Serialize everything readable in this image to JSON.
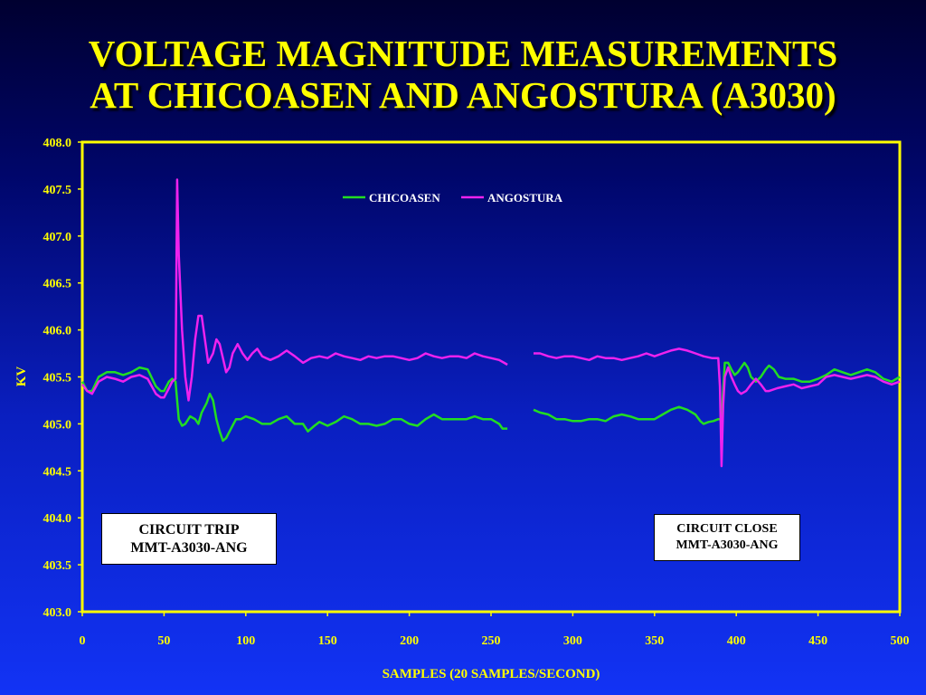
{
  "slide": {
    "title_line1": "VOLTAGE MAGNITUDE MEASUREMENTS",
    "title_line2": "AT CHICOASEN AND ANGOSTURA (A3030)"
  },
  "colors": {
    "title": "#ffff00",
    "plot_border": "#ffff00",
    "chicoasen": "#22dd22",
    "angostura": "#ee22ee"
  },
  "annotations": {
    "trip": {
      "line1": "CIRCUIT TRIP",
      "line2": "MMT-A3030-ANG"
    },
    "close": {
      "line1": "CIRCUIT CLOSE",
      "line2": "MMT-A3030-ANG"
    }
  },
  "chart_data": {
    "type": "line",
    "title": "VOLTAGE MAGNITUDE MEASUREMENTS AT CHICOASEN AND ANGOSTURA (A3030)",
    "xlabel": "SAMPLES (20 SAMPLES/SECOND)",
    "ylabel": "KV",
    "xlim": [
      0,
      500
    ],
    "ylim": [
      403.0,
      408.0
    ],
    "xticks": [
      0,
      50,
      100,
      150,
      200,
      250,
      300,
      350,
      400,
      450,
      500
    ],
    "yticks": [
      "408.0",
      "407.5",
      "407.0",
      "406.5",
      "406.0",
      "405.5",
      "405.0",
      "404.5",
      "404.0",
      "403.5",
      "403.0"
    ],
    "grid": false,
    "legend_position": "top-center",
    "series": [
      {
        "name": "CHICOASEN",
        "color": "#22dd22",
        "segments": [
          [
            [
              0,
              405.45
            ],
            [
              3,
              405.35
            ],
            [
              6,
              405.35
            ],
            [
              10,
              405.5
            ],
            [
              15,
              405.55
            ],
            [
              20,
              405.55
            ],
            [
              25,
              405.52
            ],
            [
              30,
              405.55
            ],
            [
              35,
              405.6
            ],
            [
              40,
              405.58
            ],
            [
              45,
              405.4
            ],
            [
              48,
              405.35
            ],
            [
              50,
              405.35
            ],
            [
              53,
              405.45
            ],
            [
              55,
              405.48
            ],
            [
              57,
              405.45
            ],
            [
              59,
              405.05
            ],
            [
              61,
              404.98
            ],
            [
              63,
              405.0
            ],
            [
              66,
              405.08
            ],
            [
              69,
              405.05
            ],
            [
              71,
              405.0
            ],
            [
              73,
              405.12
            ],
            [
              76,
              405.22
            ],
            [
              78,
              405.32
            ],
            [
              80,
              405.25
            ],
            [
              82,
              405.05
            ],
            [
              84,
              404.92
            ],
            [
              86,
              404.82
            ],
            [
              88,
              404.85
            ],
            [
              91,
              404.95
            ],
            [
              94,
              405.05
            ],
            [
              97,
              405.05
            ],
            [
              100,
              405.08
            ],
            [
              105,
              405.05
            ],
            [
              110,
              405.0
            ],
            [
              115,
              405.0
            ],
            [
              120,
              405.05
            ],
            [
              125,
              405.08
            ],
            [
              130,
              405.0
            ],
            [
              135,
              405.0
            ],
            [
              138,
              404.92
            ],
            [
              142,
              404.98
            ],
            [
              145,
              405.02
            ],
            [
              150,
              404.98
            ],
            [
              155,
              405.02
            ],
            [
              160,
              405.08
            ],
            [
              165,
              405.05
            ],
            [
              170,
              405.0
            ],
            [
              175,
              405.0
            ],
            [
              180,
              404.98
            ],
            [
              185,
              405.0
            ],
            [
              190,
              405.05
            ],
            [
              195,
              405.05
            ],
            [
              200,
              405.0
            ],
            [
              205,
              404.98
            ],
            [
              210,
              405.05
            ],
            [
              215,
              405.1
            ],
            [
              220,
              405.05
            ],
            [
              225,
              405.05
            ],
            [
              230,
              405.05
            ],
            [
              235,
              405.05
            ],
            [
              240,
              405.08
            ],
            [
              245,
              405.05
            ],
            [
              250,
              405.05
            ],
            [
              255,
              405.0
            ],
            [
              257,
              404.95
            ],
            [
              260,
              404.95
            ]
          ],
          [
            [
              276,
              405.15
            ],
            [
              280,
              405.12
            ],
            [
              285,
              405.1
            ],
            [
              290,
              405.05
            ],
            [
              295,
              405.05
            ],
            [
              300,
              405.03
            ],
            [
              305,
              405.03
            ],
            [
              310,
              405.05
            ],
            [
              315,
              405.05
            ],
            [
              320,
              405.03
            ],
            [
              325,
              405.08
            ],
            [
              330,
              405.1
            ],
            [
              335,
              405.08
            ],
            [
              340,
              405.05
            ],
            [
              345,
              405.05
            ],
            [
              350,
              405.05
            ],
            [
              355,
              405.1
            ],
            [
              360,
              405.15
            ],
            [
              365,
              405.18
            ],
            [
              370,
              405.15
            ],
            [
              375,
              405.1
            ],
            [
              378,
              405.03
            ],
            [
              380,
              405.0
            ],
            [
              383,
              405.02
            ],
            [
              386,
              405.03
            ],
            [
              389,
              405.05
            ],
            [
              391,
              405.05
            ],
            [
              392,
              405.35
            ],
            [
              393,
              405.65
            ],
            [
              395,
              405.65
            ],
            [
              397,
              405.58
            ],
            [
              399,
              405.52
            ],
            [
              401,
              405.55
            ],
            [
              403,
              405.6
            ],
            [
              405,
              405.65
            ],
            [
              407,
              405.6
            ],
            [
              409,
              405.5
            ],
            [
              412,
              405.45
            ],
            [
              415,
              405.5
            ],
            [
              418,
              405.58
            ],
            [
              420,
              405.62
            ],
            [
              423,
              405.58
            ],
            [
              426,
              405.5
            ],
            [
              430,
              405.48
            ],
            [
              435,
              405.48
            ],
            [
              440,
              405.45
            ],
            [
              445,
              405.45
            ],
            [
              450,
              405.48
            ],
            [
              455,
              405.52
            ],
            [
              460,
              405.58
            ],
            [
              465,
              405.55
            ],
            [
              470,
              405.52
            ],
            [
              475,
              405.55
            ],
            [
              480,
              405.58
            ],
            [
              485,
              405.55
            ],
            [
              490,
              405.48
            ],
            [
              495,
              405.45
            ],
            [
              500,
              405.5
            ]
          ]
        ]
      },
      {
        "name": "ANGOSTURA",
        "color": "#ee22ee",
        "segments": [
          [
            [
              0,
              405.42
            ],
            [
              3,
              405.35
            ],
            [
              6,
              405.32
            ],
            [
              10,
              405.45
            ],
            [
              15,
              405.5
            ],
            [
              20,
              405.48
            ],
            [
              25,
              405.45
            ],
            [
              30,
              405.5
            ],
            [
              35,
              405.52
            ],
            [
              40,
              405.48
            ],
            [
              45,
              405.32
            ],
            [
              48,
              405.28
            ],
            [
              50,
              405.28
            ],
            [
              53,
              405.38
            ],
            [
              55,
              405.45
            ],
            [
              57,
              405.48
            ],
            [
              58,
              407.6
            ],
            [
              59,
              406.8
            ],
            [
              61,
              406.0
            ],
            [
              63,
              405.5
            ],
            [
              65,
              405.25
            ],
            [
              67,
              405.5
            ],
            [
              69,
              405.9
            ],
            [
              71,
              406.15
            ],
            [
              73,
              406.15
            ],
            [
              75,
              405.9
            ],
            [
              77,
              405.65
            ],
            [
              80,
              405.75
            ],
            [
              82,
              405.9
            ],
            [
              84,
              405.85
            ],
            [
              86,
              405.7
            ],
            [
              88,
              405.55
            ],
            [
              90,
              405.6
            ],
            [
              92,
              405.75
            ],
            [
              95,
              405.85
            ],
            [
              98,
              405.75
            ],
            [
              101,
              405.68
            ],
            [
              104,
              405.75
            ],
            [
              107,
              405.8
            ],
            [
              110,
              405.72
            ],
            [
              115,
              405.68
            ],
            [
              120,
              405.72
            ],
            [
              125,
              405.78
            ],
            [
              130,
              405.72
            ],
            [
              135,
              405.65
            ],
            [
              140,
              405.7
            ],
            [
              145,
              405.72
            ],
            [
              150,
              405.7
            ],
            [
              155,
              405.75
            ],
            [
              160,
              405.72
            ],
            [
              165,
              405.7
            ],
            [
              170,
              405.68
            ],
            [
              175,
              405.72
            ],
            [
              180,
              405.7
            ],
            [
              185,
              405.72
            ],
            [
              190,
              405.72
            ],
            [
              195,
              405.7
            ],
            [
              200,
              405.68
            ],
            [
              205,
              405.7
            ],
            [
              210,
              405.75
            ],
            [
              215,
              405.72
            ],
            [
              220,
              405.7
            ],
            [
              225,
              405.72
            ],
            [
              230,
              405.72
            ],
            [
              235,
              405.7
            ],
            [
              240,
              405.75
            ],
            [
              245,
              405.72
            ],
            [
              250,
              405.7
            ],
            [
              255,
              405.68
            ],
            [
              258,
              405.65
            ],
            [
              260,
              405.63
            ]
          ],
          [
            [
              276,
              405.75
            ],
            [
              280,
              405.75
            ],
            [
              285,
              405.72
            ],
            [
              290,
              405.7
            ],
            [
              295,
              405.72
            ],
            [
              300,
              405.72
            ],
            [
              305,
              405.7
            ],
            [
              310,
              405.68
            ],
            [
              315,
              405.72
            ],
            [
              320,
              405.7
            ],
            [
              325,
              405.7
            ],
            [
              330,
              405.68
            ],
            [
              335,
              405.7
            ],
            [
              340,
              405.72
            ],
            [
              345,
              405.75
            ],
            [
              350,
              405.72
            ],
            [
              355,
              405.75
            ],
            [
              360,
              405.78
            ],
            [
              365,
              405.8
            ],
            [
              370,
              405.78
            ],
            [
              375,
              405.75
            ],
            [
              380,
              405.72
            ],
            [
              385,
              405.7
            ],
            [
              389,
              405.7
            ],
            [
              390,
              405.4
            ],
            [
              391,
              404.55
            ],
            [
              392,
              405.2
            ],
            [
              393,
              405.5
            ],
            [
              395,
              405.6
            ],
            [
              397,
              405.5
            ],
            [
              399,
              405.42
            ],
            [
              401,
              405.35
            ],
            [
              403,
              405.32
            ],
            [
              406,
              405.35
            ],
            [
              409,
              405.42
            ],
            [
              412,
              405.48
            ],
            [
              415,
              405.42
            ],
            [
              418,
              405.35
            ],
            [
              420,
              405.35
            ],
            [
              425,
              405.38
            ],
            [
              430,
              405.4
            ],
            [
              435,
              405.42
            ],
            [
              440,
              405.38
            ],
            [
              445,
              405.4
            ],
            [
              450,
              405.42
            ],
            [
              455,
              405.5
            ],
            [
              460,
              405.52
            ],
            [
              465,
              405.5
            ],
            [
              470,
              405.48
            ],
            [
              475,
              405.5
            ],
            [
              480,
              405.52
            ],
            [
              485,
              405.5
            ],
            [
              490,
              405.45
            ],
            [
              495,
              405.42
            ],
            [
              500,
              405.45
            ]
          ]
        ]
      }
    ]
  }
}
